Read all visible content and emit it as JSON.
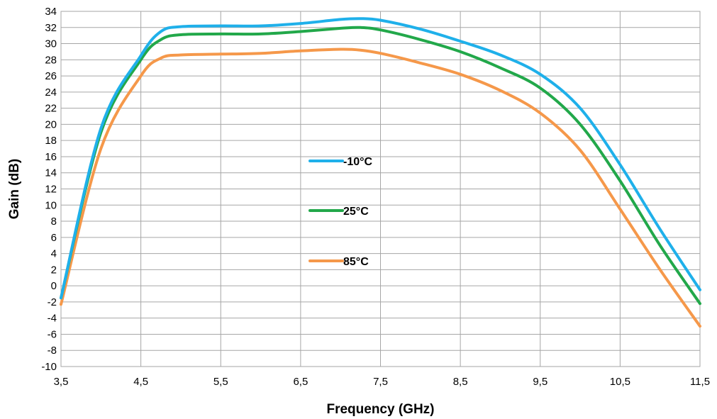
{
  "chart_data": {
    "type": "line",
    "xlabel": "Frequency (GHz)",
    "ylabel": "Gain (dB)",
    "xlim": [
      3.5,
      11.5
    ],
    "ylim": [
      -10,
      34
    ],
    "xticks": [
      "3,5",
      "4,5",
      "5,5",
      "6,5",
      "7,5",
      "8,5",
      "9,5",
      "10,5",
      "11,5"
    ],
    "yticks": [
      "-10",
      "-8",
      "-6",
      "-4",
      "-2",
      "0",
      "2",
      "4",
      "6",
      "8",
      "10",
      "12",
      "14",
      "16",
      "18",
      "20",
      "22",
      "24",
      "26",
      "28",
      "30",
      "32",
      "34"
    ],
    "grid": true,
    "legend_position": "center",
    "series": [
      {
        "name": "-10°C",
        "color": "#1fb0ea",
        "x": [
          3.5,
          4.0,
          4.5,
          4.75,
          5.0,
          5.5,
          6.0,
          6.5,
          7.0,
          7.25,
          7.5,
          8.0,
          8.5,
          9.0,
          9.5,
          10.0,
          10.5,
          11.0,
          11.5
        ],
        "y": [
          -1.5,
          19.5,
          28.5,
          31.5,
          32.1,
          32.2,
          32.2,
          32.5,
          33.0,
          33.1,
          32.9,
          31.8,
          30.3,
          28.6,
          26.2,
          22.0,
          15.0,
          7.0,
          -0.5
        ]
      },
      {
        "name": "25°C",
        "color": "#22a84a",
        "x": [
          3.5,
          4.0,
          4.5,
          4.75,
          5.0,
          5.5,
          6.0,
          6.5,
          7.0,
          7.25,
          7.5,
          8.0,
          8.5,
          9.0,
          9.5,
          10.0,
          10.5,
          11.0,
          11.5
        ],
        "y": [
          -1.5,
          19.0,
          28.0,
          30.5,
          31.1,
          31.2,
          31.2,
          31.5,
          31.9,
          32.0,
          31.7,
          30.5,
          29.0,
          27.0,
          24.5,
          20.0,
          13.0,
          5.0,
          -2.2
        ]
      },
      {
        "name": "85°C",
        "color": "#f5984a",
        "x": [
          3.5,
          4.0,
          4.5,
          4.75,
          5.0,
          5.5,
          6.0,
          6.5,
          7.0,
          7.25,
          7.5,
          8.0,
          8.5,
          9.0,
          9.5,
          10.0,
          10.5,
          11.0,
          11.5
        ],
        "y": [
          -2.3,
          17.0,
          26.0,
          28.2,
          28.6,
          28.7,
          28.8,
          29.1,
          29.3,
          29.2,
          28.8,
          27.6,
          26.2,
          24.2,
          21.4,
          16.8,
          9.5,
          2.0,
          -5.0
        ]
      }
    ]
  }
}
